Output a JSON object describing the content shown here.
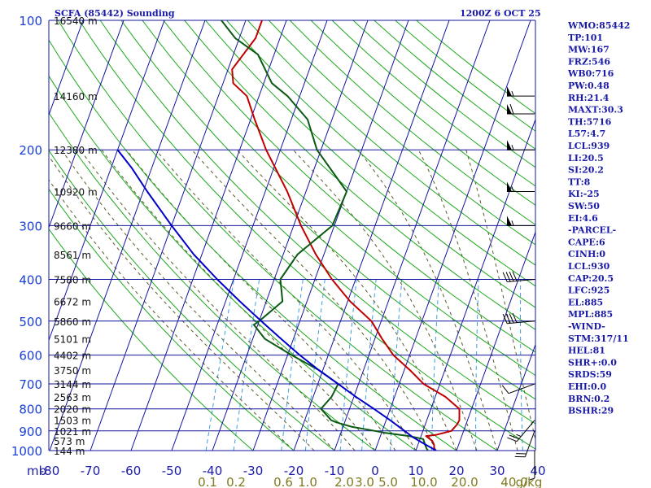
{
  "header": {
    "left": "SCFA (85442) Sounding",
    "right": "1200Z  6 OCT 25"
  },
  "indices": [
    "WMO:85442",
    "TP:101",
    "MW:167",
    "FRZ:546",
    "WB0:716",
    "PW:0.48",
    "RH:21.4",
    "MAXT:30.3",
    "TH:5716",
    "L57:4.7",
    "LCL:939",
    "LI:20.5",
    "SI:20.2",
    "TT:8",
    "KI:-25",
    "SW:50",
    "EI:4.6",
    "-PARCEL-",
    "CAPE:6",
    "CINH:0",
    "LCL:930",
    "CAP:20.5",
    "LFC:925",
    "EL:885",
    "MPL:885",
    "-WIND-",
    "STM:317/11",
    "HEL:81",
    "SHR+:0.0",
    "SRDS:59",
    "EHI:0.0",
    "BRN:0.2",
    "BSHR:29"
  ],
  "colors": {
    "isobar": "#1414a0",
    "isotherm": "#1414a0",
    "dry_adiabat": "#1ca81c",
    "moist_adiabat": "#5a5a2a",
    "mixing_ratio": "#3aa0e0",
    "temperature": "#c00000",
    "dewpoint": "#0a5a14",
    "parcel": "#0000c8",
    "barb": "#000000"
  },
  "chart_data": {
    "type": "line",
    "title": "SCFA (85442) Sounding",
    "time": "1200Z  6 OCT 25",
    "x_unit_label": "mb",
    "y_scale": "log",
    "pressure_levels_mb": [
      100,
      200,
      300,
      400,
      500,
      600,
      700,
      800,
      900,
      1000
    ],
    "temperature_ticks_c": [
      -80,
      -70,
      -60,
      -50,
      -40,
      -30,
      -20,
      -10,
      0,
      10,
      20,
      30,
      40
    ],
    "xlim_c": [
      -80,
      40
    ],
    "ylim_mb": [
      100,
      1000
    ],
    "mixing_ratio_ticks": [
      "0.1",
      "0.2",
      "0.6",
      "1.0",
      "2.0",
      "3.0",
      "5.0",
      "10.0",
      "20.0",
      "40.0"
    ],
    "mixing_ratio_values": [
      0.1,
      0.2,
      0.6,
      1.0,
      2.0,
      3.0,
      5.0,
      10.0,
      20.0,
      40.0
    ],
    "mixing_ratio_unit": "g/kg",
    "height_labels": [
      {
        "p": 100,
        "label": "16540 m"
      },
      {
        "p": 150,
        "label": "14160 m"
      },
      {
        "p": 200,
        "label": "12380 m"
      },
      {
        "p": 250,
        "label": "10920 m"
      },
      {
        "p": 300,
        "label": "9660 m"
      },
      {
        "p": 350,
        "label": "8561 m"
      },
      {
        "p": 400,
        "label": "7580 m"
      },
      {
        "p": 450,
        "label": "6672 m"
      },
      {
        "p": 500,
        "label": "5860 m"
      },
      {
        "p": 550,
        "label": "5101 m"
      },
      {
        "p": 600,
        "label": "4402 m"
      },
      {
        "p": 650,
        "label": "3750 m"
      },
      {
        "p": 700,
        "label": "3144 m"
      },
      {
        "p": 750,
        "label": "2563 m"
      },
      {
        "p": 800,
        "label": "2020 m"
      },
      {
        "p": 850,
        "label": "1503 m"
      },
      {
        "p": 900,
        "label": "1021 m"
      },
      {
        "p": 950,
        "label": "573 m"
      },
      {
        "p": 1000,
        "label": "144 m"
      }
    ],
    "series": [
      {
        "key": "temperature",
        "points": [
          [
            1000,
            14.5
          ],
          [
            970,
            14.0
          ],
          [
            950,
            13.2
          ],
          [
            925,
            11.2
          ],
          [
            920,
            13.5
          ],
          [
            900,
            17.0
          ],
          [
            870,
            17.8
          ],
          [
            850,
            18.0
          ],
          [
            800,
            17.0
          ],
          [
            750,
            12.5
          ],
          [
            700,
            6.0
          ],
          [
            650,
            1.4
          ],
          [
            600,
            -4.0
          ],
          [
            550,
            -8.2
          ],
          [
            500,
            -12.4
          ],
          [
            450,
            -19.4
          ],
          [
            400,
            -25.8
          ],
          [
            350,
            -32.0
          ],
          [
            300,
            -38.2
          ],
          [
            250,
            -44.6
          ],
          [
            200,
            -53.5
          ],
          [
            170,
            -59.0
          ],
          [
            150,
            -63.0
          ],
          [
            140,
            -67.5
          ],
          [
            130,
            -69.0
          ],
          [
            110,
            -66.0
          ],
          [
            100,
            -66.0
          ]
        ]
      },
      {
        "key": "dewpoint",
        "points": [
          [
            1000,
            13.0
          ],
          [
            990,
            12.5
          ],
          [
            970,
            11.8
          ],
          [
            940,
            10.8
          ],
          [
            925,
            7.0
          ],
          [
            910,
            1.0
          ],
          [
            900,
            -1.8
          ],
          [
            880,
            -8.0
          ],
          [
            860,
            -12.0
          ],
          [
            850,
            -13.5
          ],
          [
            800,
            -17.0
          ],
          [
            750,
            -15.5
          ],
          [
            700,
            -15.0
          ],
          [
            650,
            -21.0
          ],
          [
            600,
            -29.0
          ],
          [
            550,
            -37.0
          ],
          [
            510,
            -41.0
          ],
          [
            500,
            -40.0
          ],
          [
            450,
            -36.0
          ],
          [
            400,
            -38.5
          ],
          [
            350,
            -36.5
          ],
          [
            300,
            -30.5
          ],
          [
            250,
            -30.0
          ],
          [
            200,
            -41.0
          ],
          [
            170,
            -46.0
          ],
          [
            150,
            -53.0
          ],
          [
            140,
            -58.0
          ],
          [
            120,
            -64.0
          ],
          [
            110,
            -71.0
          ],
          [
            100,
            -76.0
          ]
        ]
      },
      {
        "key": "parcel",
        "points": [
          [
            1000,
            15.0
          ],
          [
            950,
            10.0
          ],
          [
            930,
            8.0
          ],
          [
            900,
            5.5
          ],
          [
            850,
            1.0
          ],
          [
            800,
            -4.0
          ],
          [
            750,
            -9.5
          ],
          [
            700,
            -15.0
          ],
          [
            650,
            -21.0
          ],
          [
            600,
            -27.0
          ],
          [
            550,
            -33.0
          ],
          [
            500,
            -39.5
          ],
          [
            450,
            -46.5
          ],
          [
            400,
            -54.0
          ],
          [
            350,
            -62.0
          ],
          [
            300,
            -70.0
          ],
          [
            250,
            -79.0
          ],
          [
            220,
            -85.0
          ],
          [
            200,
            -90.0
          ]
        ]
      }
    ],
    "wind_barbs": [
      {
        "p": 150,
        "dir": 270,
        "spd": 55
      },
      {
        "p": 165,
        "dir": 270,
        "spd": 60
      },
      {
        "p": 200,
        "dir": 270,
        "spd": 55
      },
      {
        "p": 250,
        "dir": 270,
        "spd": 55
      },
      {
        "p": 300,
        "dir": 270,
        "spd": 55
      },
      {
        "p": 400,
        "dir": 265,
        "spd": 40
      },
      {
        "p": 500,
        "dir": 265,
        "spd": 40
      },
      {
        "p": 700,
        "dir": 250,
        "spd": 10
      },
      {
        "p": 850,
        "dir": 220,
        "spd": 25
      },
      {
        "p": 900,
        "dir": 200,
        "spd": 20
      },
      {
        "p": 1000,
        "dir": 180,
        "spd": 5
      }
    ]
  }
}
